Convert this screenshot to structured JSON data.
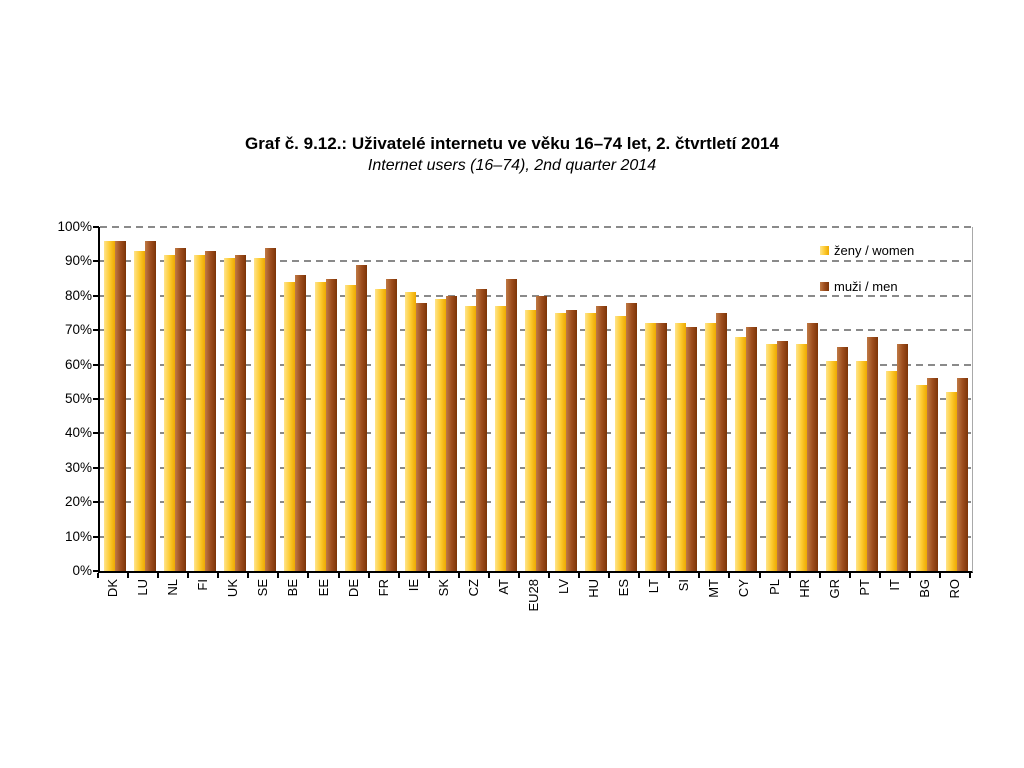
{
  "header": {
    "title": "Graf č. 9.12.: Uživatelé internetu ve věku 16–74 let, 2. čtvrtletí 2014",
    "subtitle": "Internet users (16–74), 2nd quarter 2014"
  },
  "chart_data": {
    "type": "bar",
    "title": "Graf č. 9.12.: Uživatelé internetu ve věku 16–74 let, 2. čtvrtletí 2014",
    "subtitle": "Internet users (16–74), 2nd quarter 2014",
    "categories": [
      "DK",
      "LU",
      "NL",
      "FI",
      "UK",
      "SE",
      "BE",
      "EE",
      "DE",
      "FR",
      "IE",
      "SK",
      "CZ",
      "AT",
      "EU28",
      "LV",
      "HU",
      "ES",
      "LT",
      "SI",
      "MT",
      "CY",
      "PL",
      "HR",
      "GR",
      "PT",
      "IT",
      "BG",
      "RO"
    ],
    "series": [
      {
        "name": "ženy / women",
        "values": [
          96,
          93,
          92,
          92,
          91,
          91,
          84,
          84,
          83,
          82,
          81,
          79,
          77,
          77,
          76,
          75,
          75,
          74,
          72,
          72,
          72,
          68,
          66,
          66,
          61,
          61,
          58,
          54,
          52
        ],
        "color_light": "#ffe48a",
        "color_base": "#fdcb32",
        "color_dark": "#eda900"
      },
      {
        "name": "muži / men",
        "values": [
          96,
          96,
          94,
          93,
          92,
          94,
          86,
          85,
          89,
          85,
          78,
          80,
          82,
          85,
          80,
          76,
          77,
          78,
          72,
          71,
          75,
          71,
          67,
          72,
          65,
          68,
          66,
          56,
          56
        ],
        "color_light": "#c07a45",
        "color_base": "#9e4e1e",
        "color_dark": "#7c3407"
      }
    ],
    "ylabel": "",
    "xlabel": "",
    "ylim": [
      0,
      100
    ],
    "y_tick_step": 10,
    "y_tick_suffix": "%",
    "grid": "dashed horizontal",
    "legend_position": "inside top-right",
    "value_unit": "percent"
  }
}
